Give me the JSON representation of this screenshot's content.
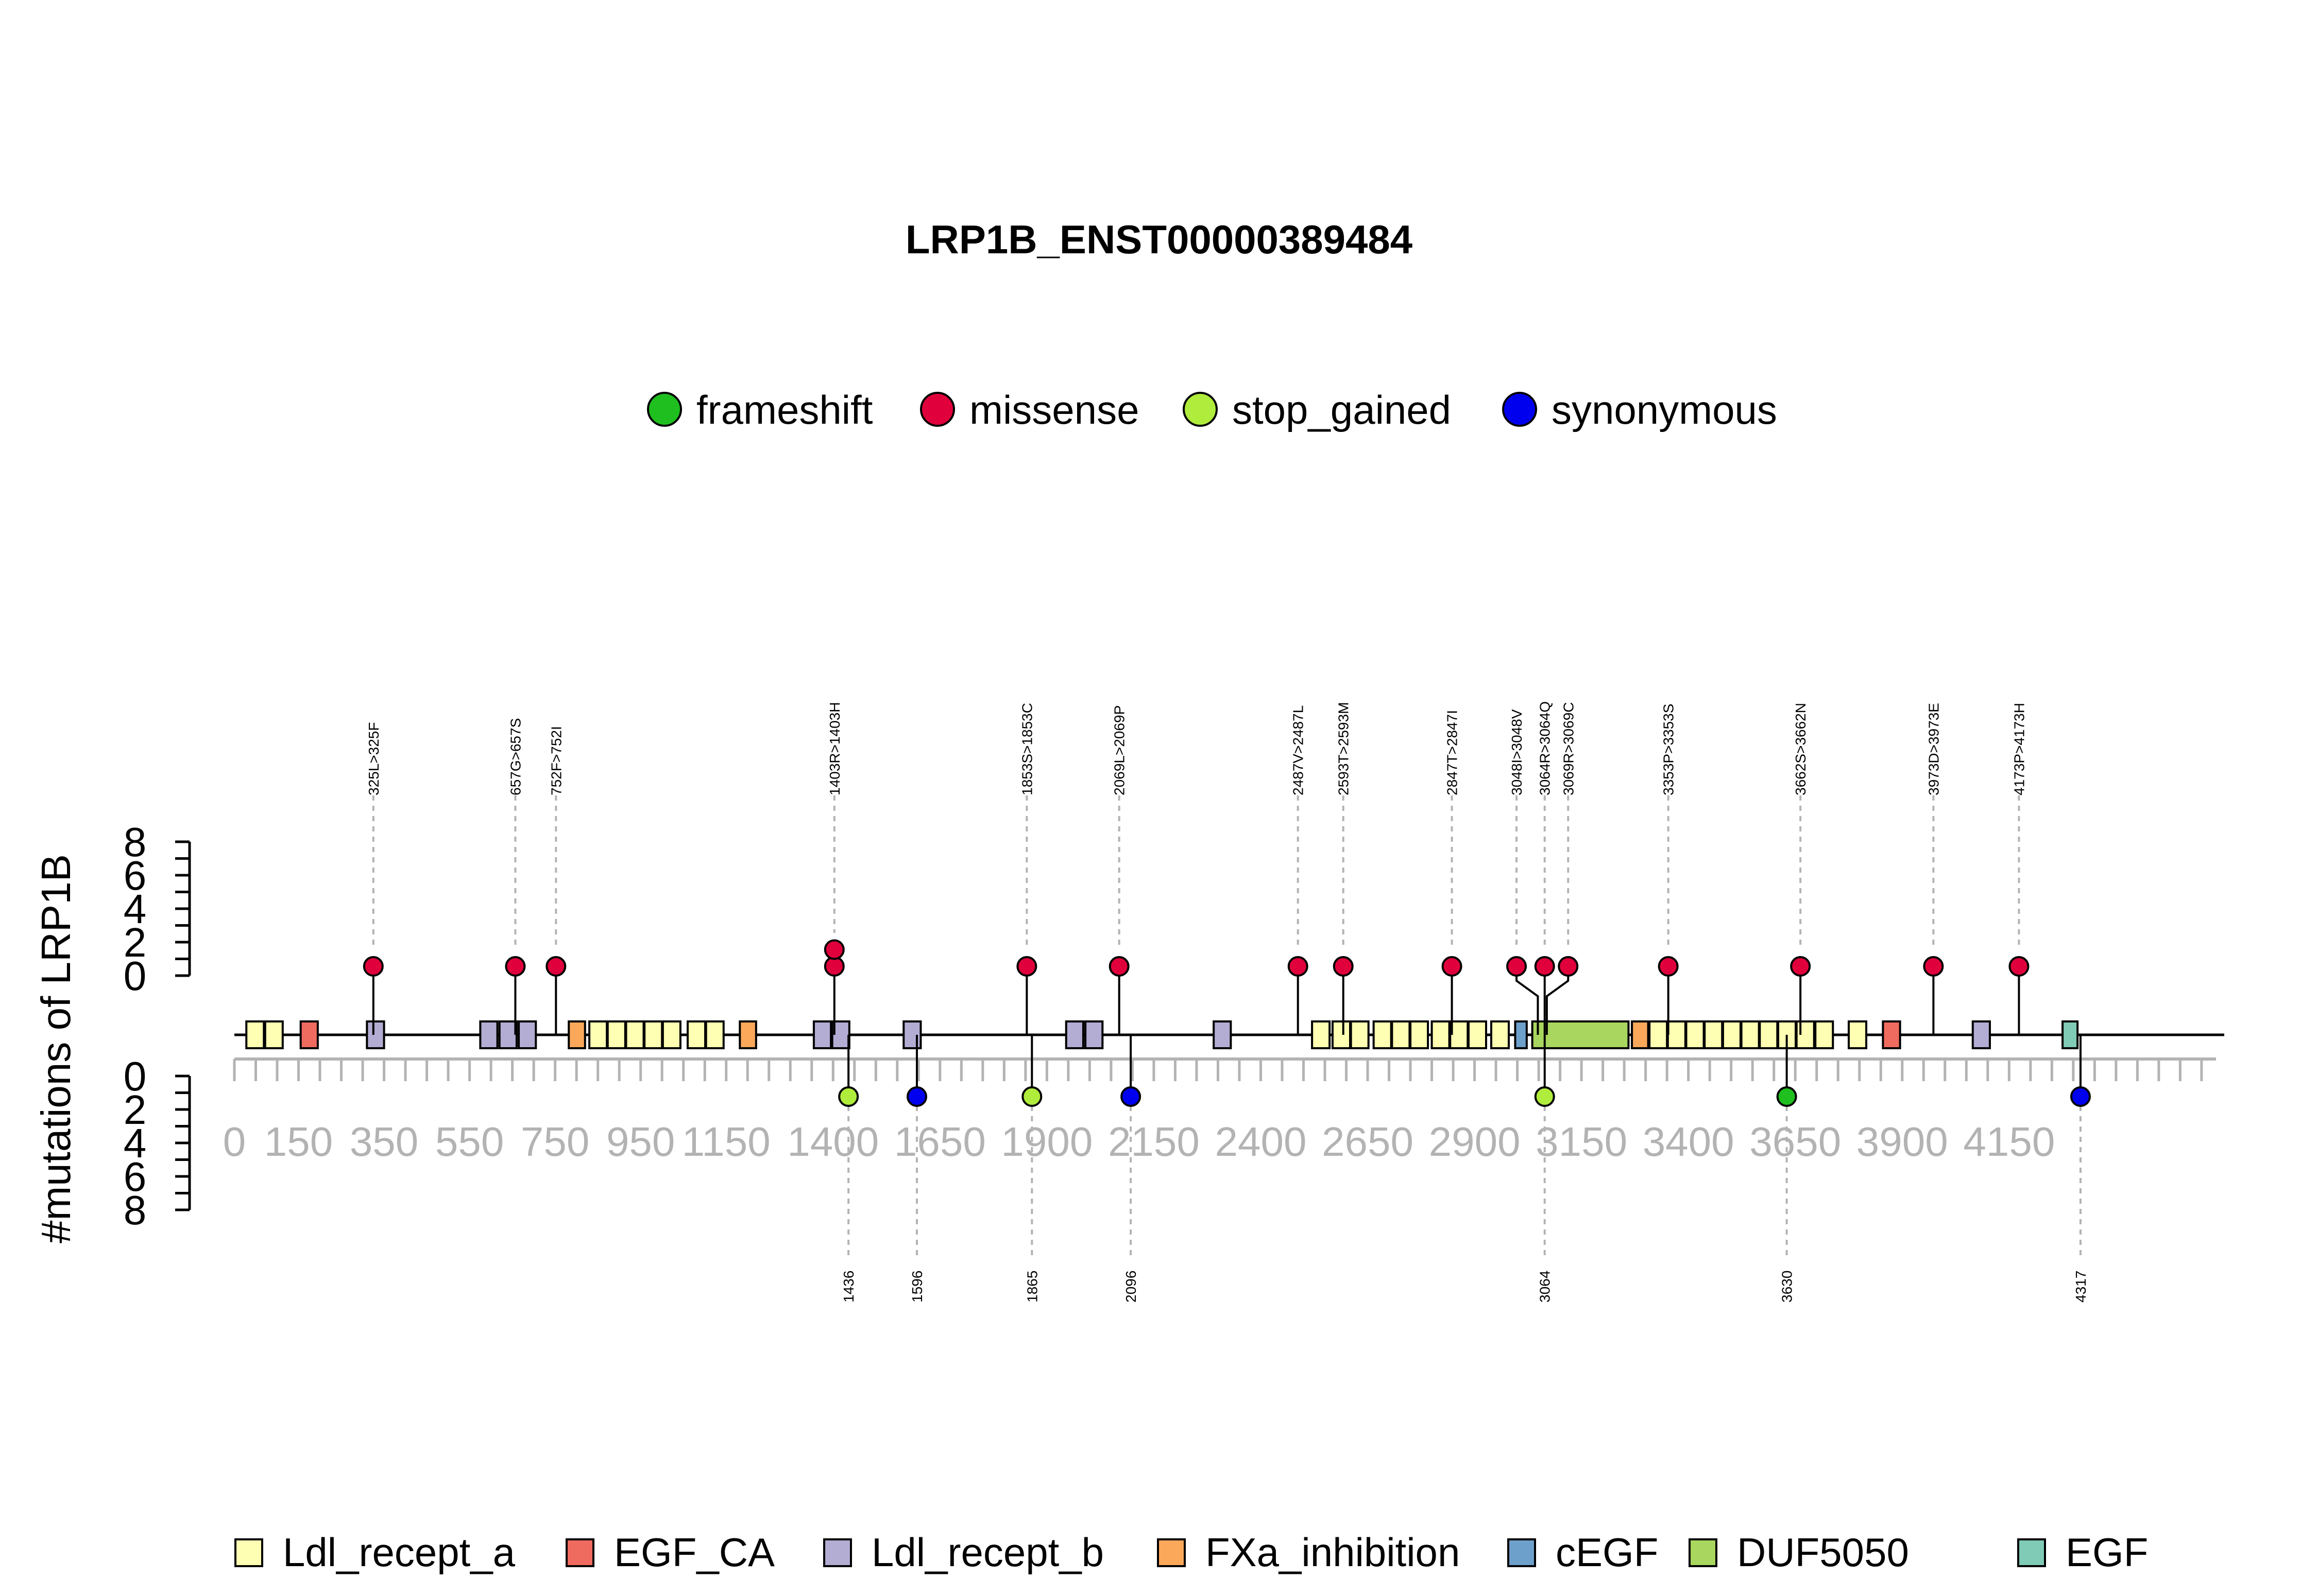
{
  "chart_data": {
    "type": "lollipop",
    "title": "LRP1B_ENST00000389484",
    "ylabel": "#mutations of LRP1B",
    "ylim": [
      0,
      8
    ],
    "yticks": [
      "0",
      "2",
      "4",
      "6",
      "8"
    ],
    "xlim": [
      0,
      4600
    ],
    "xticks": [
      "0",
      "150",
      "350",
      "550",
      "750",
      "950",
      "1150",
      "1400",
      "1650",
      "1900",
      "2150",
      "2400",
      "2650",
      "2900",
      "3150",
      "3400",
      "3650",
      "3900",
      "4150"
    ],
    "xtick_values": [
      0,
      150,
      350,
      550,
      750,
      950,
      1150,
      1400,
      1650,
      1900,
      2150,
      2400,
      2650,
      2900,
      3150,
      3400,
      3650,
      3900,
      4150
    ],
    "mutation_legend": [
      {
        "name": "frameshift",
        "color": "#1fbf1f"
      },
      {
        "name": "missense",
        "color": "#e0003c"
      },
      {
        "name": "stop_gained",
        "color": "#b0ec3c"
      },
      {
        "name": "synonymous",
        "color": "#0000ee"
      }
    ],
    "domain_legend": [
      {
        "name": "Ldl_recept_a",
        "color": "#ffffb3"
      },
      {
        "name": "EGF_CA",
        "color": "#f06b5f"
      },
      {
        "name": "Ldl_recept_b",
        "color": "#b3acd3"
      },
      {
        "name": "FXa_inhibition",
        "color": "#fba85a"
      },
      {
        "name": "cEGF",
        "color": "#6ea0cc"
      },
      {
        "name": "DUF5050",
        "color": "#a9d65e"
      },
      {
        "name": "EGF",
        "color": "#7fcbb6"
      }
    ],
    "top_mutations": [
      {
        "label": "325L>325F",
        "pos": 325,
        "count": 1,
        "type": "missense"
      },
      {
        "label": "657G>657S",
        "pos": 657,
        "count": 1,
        "type": "missense"
      },
      {
        "label": "752F>752I",
        "pos": 752,
        "count": 1,
        "type": "missense"
      },
      {
        "label": "1403R>1403H",
        "pos": 1403,
        "count": 2,
        "type": "missense"
      },
      {
        "label": "1853S>1853C",
        "pos": 1853,
        "count": 1,
        "type": "missense"
      },
      {
        "label": "2069L>2069P",
        "pos": 2069,
        "count": 1,
        "type": "missense"
      },
      {
        "label": "2487V>2487L",
        "pos": 2487,
        "count": 1,
        "type": "missense"
      },
      {
        "label": "2593T>2593M",
        "pos": 2593,
        "count": 1,
        "type": "missense"
      },
      {
        "label": "2847T>2847I",
        "pos": 2847,
        "count": 1,
        "type": "missense"
      },
      {
        "label": "3048I>3048V",
        "pos": 3048,
        "count": 1,
        "type": "missense"
      },
      {
        "label": "3064R>3064Q",
        "pos": 3064,
        "count": 1,
        "type": "missense"
      },
      {
        "label": "3069R>3069C",
        "pos": 3069,
        "count": 1,
        "type": "missense"
      },
      {
        "label": "3353P>3353S",
        "pos": 3353,
        "count": 1,
        "type": "missense"
      },
      {
        "label": "3662S>3662N",
        "pos": 3662,
        "count": 1,
        "type": "missense"
      },
      {
        "label": "3973D>3973E",
        "pos": 3973,
        "count": 1,
        "type": "missense"
      },
      {
        "label": "4173P>4173H",
        "pos": 4173,
        "count": 1,
        "type": "missense"
      }
    ],
    "bottom_mutations": [
      {
        "label": "1436",
        "pos": 1436,
        "count": 1,
        "type": "stop_gained"
      },
      {
        "label": "1596",
        "pos": 1596,
        "count": 1,
        "type": "synonymous"
      },
      {
        "label": "1865",
        "pos": 1865,
        "count": 1,
        "type": "stop_gained"
      },
      {
        "label": "2096",
        "pos": 2096,
        "count": 1,
        "type": "synonymous"
      },
      {
        "label": "3064",
        "pos": 3064,
        "count": 1,
        "type": "stop_gained"
      },
      {
        "label": "3630",
        "pos": 3630,
        "count": 1,
        "type": "frameshift"
      },
      {
        "label": "4317",
        "pos": 4317,
        "count": 1,
        "type": "synonymous"
      }
    ],
    "domains": [
      {
        "name": "Ldl_recept_a",
        "start": 28,
        "end": 69
      },
      {
        "name": "Ldl_recept_a",
        "start": 72,
        "end": 113
      },
      {
        "name": "EGF_CA",
        "start": 155,
        "end": 195
      },
      {
        "name": "Ldl_recept_b",
        "start": 310,
        "end": 350
      },
      {
        "name": "Ldl_recept_b",
        "start": 575,
        "end": 615
      },
      {
        "name": "Ldl_recept_b",
        "start": 620,
        "end": 660
      },
      {
        "name": "Ldl_recept_b",
        "start": 665,
        "end": 705
      },
      {
        "name": "FXa_inhibition",
        "start": 782,
        "end": 820
      },
      {
        "name": "Ldl_recept_a",
        "start": 830,
        "end": 871
      },
      {
        "name": "Ldl_recept_a",
        "start": 873,
        "end": 914
      },
      {
        "name": "Ldl_recept_a",
        "start": 916,
        "end": 957
      },
      {
        "name": "Ldl_recept_a",
        "start": 959,
        "end": 1000
      },
      {
        "name": "Ldl_recept_a",
        "start": 1002,
        "end": 1043
      },
      {
        "name": "Ldl_recept_a",
        "start": 1060,
        "end": 1101
      },
      {
        "name": "Ldl_recept_a",
        "start": 1103,
        "end": 1144
      },
      {
        "name": "FXa_inhibition",
        "start": 1182,
        "end": 1220
      },
      {
        "name": "Ldl_recept_b",
        "start": 1355,
        "end": 1395
      },
      {
        "name": "Ldl_recept_b",
        "start": 1398,
        "end": 1438
      },
      {
        "name": "Ldl_recept_b",
        "start": 1565,
        "end": 1605
      },
      {
        "name": "Ldl_recept_b",
        "start": 1945,
        "end": 1985
      },
      {
        "name": "Ldl_recept_b",
        "start": 1990,
        "end": 2030
      },
      {
        "name": "Ldl_recept_b",
        "start": 2290,
        "end": 2330
      },
      {
        "name": "Ldl_recept_a",
        "start": 2520,
        "end": 2561
      },
      {
        "name": "Ldl_recept_a",
        "start": 2568,
        "end": 2609
      },
      {
        "name": "Ldl_recept_a",
        "start": 2611,
        "end": 2652
      },
      {
        "name": "Ldl_recept_a",
        "start": 2664,
        "end": 2705
      },
      {
        "name": "Ldl_recept_a",
        "start": 2707,
        "end": 2748
      },
      {
        "name": "Ldl_recept_a",
        "start": 2750,
        "end": 2791
      },
      {
        "name": "Ldl_recept_a",
        "start": 2800,
        "end": 2841
      },
      {
        "name": "Ldl_recept_a",
        "start": 2843,
        "end": 2884
      },
      {
        "name": "Ldl_recept_a",
        "start": 2886,
        "end": 2927
      },
      {
        "name": "Ldl_recept_a",
        "start": 2939,
        "end": 2980
      },
      {
        "name": "cEGF",
        "start": 2995,
        "end": 3022
      },
      {
        "name": "DUF5050",
        "start": 3035,
        "end": 3260
      },
      {
        "name": "FXa_inhibition",
        "start": 3268,
        "end": 3306
      },
      {
        "name": "Ldl_recept_a",
        "start": 3309,
        "end": 3350
      },
      {
        "name": "Ldl_recept_a",
        "start": 3352,
        "end": 3393
      },
      {
        "name": "Ldl_recept_a",
        "start": 3395,
        "end": 3436
      },
      {
        "name": "Ldl_recept_a",
        "start": 3438,
        "end": 3479
      },
      {
        "name": "Ldl_recept_a",
        "start": 3481,
        "end": 3522
      },
      {
        "name": "Ldl_recept_a",
        "start": 3524,
        "end": 3565
      },
      {
        "name": "Ldl_recept_a",
        "start": 3567,
        "end": 3608
      },
      {
        "name": "Ldl_recept_a",
        "start": 3610,
        "end": 3651
      },
      {
        "name": "Ldl_recept_a",
        "start": 3653,
        "end": 3694
      },
      {
        "name": "Ldl_recept_a",
        "start": 3697,
        "end": 3738
      },
      {
        "name": "Ldl_recept_a",
        "start": 3775,
        "end": 3816
      },
      {
        "name": "EGF_CA",
        "start": 3855,
        "end": 3895
      },
      {
        "name": "Ldl_recept_b",
        "start": 4065,
        "end": 4105
      },
      {
        "name": "EGF",
        "start": 4275,
        "end": 4310
      }
    ]
  }
}
